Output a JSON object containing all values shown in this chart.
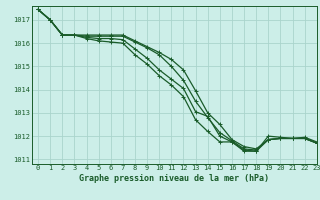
{
  "xlabel": "Graphe pression niveau de la mer (hPa)",
  "background_color": "#cceee8",
  "grid_color": "#aad4cc",
  "line_color": "#1a5c2a",
  "xlim": [
    -0.5,
    23
  ],
  "ylim": [
    1010.8,
    1017.6
  ],
  "yticks": [
    1011,
    1012,
    1013,
    1014,
    1015,
    1016,
    1017
  ],
  "xticks": [
    0,
    1,
    2,
    3,
    4,
    5,
    6,
    7,
    8,
    9,
    10,
    11,
    12,
    13,
    14,
    15,
    16,
    17,
    18,
    19,
    20,
    21,
    22,
    23
  ],
  "series": [
    [
      1017.45,
      1017.0,
      1016.35,
      1016.35,
      1016.35,
      1016.35,
      1016.35,
      1016.35,
      1016.1,
      1015.85,
      1015.6,
      1015.3,
      1014.85,
      1013.95,
      1013.0,
      1012.5,
      1011.85,
      1011.55,
      1011.45,
      1011.85,
      1011.9,
      1011.9,
      1011.9,
      1011.7
    ],
    [
      1017.45,
      1017.0,
      1016.35,
      1016.35,
      1016.3,
      1016.3,
      1016.3,
      1016.3,
      1016.05,
      1015.8,
      1015.5,
      1015.0,
      1014.4,
      1013.5,
      1012.8,
      1012.15,
      1011.8,
      1011.45,
      1011.4,
      1011.85,
      1011.9,
      1011.9,
      1011.9,
      1011.7
    ],
    [
      1017.45,
      1017.0,
      1016.35,
      1016.35,
      1016.25,
      1016.2,
      1016.2,
      1016.15,
      1015.75,
      1015.35,
      1014.85,
      1014.45,
      1014.05,
      1013.05,
      1012.85,
      1012.0,
      1011.75,
      1011.4,
      1011.35,
      1012.0,
      1011.95,
      1011.9,
      1011.95,
      1011.75
    ],
    [
      1017.45,
      1017.0,
      1016.35,
      1016.35,
      1016.2,
      1016.1,
      1016.05,
      1016.0,
      1015.5,
      1015.1,
      1014.6,
      1014.2,
      1013.7,
      1012.7,
      1012.2,
      1011.75,
      1011.75,
      1011.35,
      1011.35,
      1011.85,
      1011.9,
      1011.9,
      1011.9,
      1011.7
    ]
  ],
  "marker": "+",
  "markersize": 3.5,
  "linewidth": 0.9,
  "tick_fontsize": 5.0,
  "label_fontsize": 6.0
}
